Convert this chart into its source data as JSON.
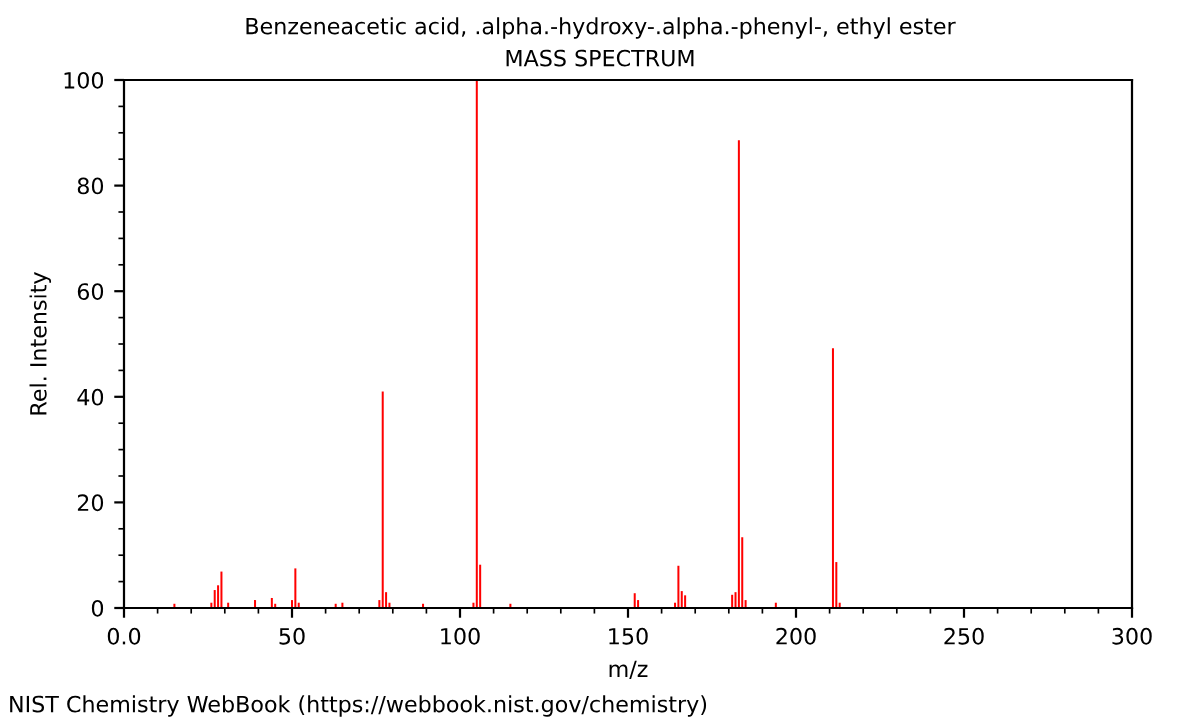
{
  "chart_data": {
    "type": "bar",
    "title": "Benzeneacetic acid, .alpha.-hydroxy-.alpha.-phenyl-, ethyl ester",
    "subtitle": "MASS SPECTRUM",
    "xlabel": "m/z",
    "ylabel": "Rel. Intensity",
    "annotations": [
      "NIST Chemistry WebBook (https://webbook.nist.gov/chemistry)"
    ],
    "x": [
      15,
      26,
      27,
      28,
      29,
      31,
      39,
      44,
      45,
      50,
      51,
      52,
      63,
      65,
      76,
      77,
      78,
      79,
      89,
      104,
      105,
      106,
      115,
      152,
      153,
      164,
      165,
      166,
      167,
      181,
      182,
      183,
      184,
      185,
      194,
      211,
      212,
      213
    ],
    "values": [
      0.8,
      1,
      3.4,
      4.3,
      6.9,
      1,
      1.5,
      1.9,
      0.8,
      1.5,
      7.5,
      1,
      0.8,
      1,
      1.5,
      41,
      3,
      1,
      0.8,
      1,
      100,
      8.2,
      0.8,
      2.8,
      1.5,
      1,
      8,
      3.2,
      2.4,
      2.5,
      3,
      88.6,
      13.4,
      1.5,
      1,
      49.2,
      8.7,
      1
    ],
    "color": "#ff0000",
    "xlim": [
      0,
      300
    ],
    "ylim": [
      0,
      100
    ],
    "xticks": [
      {
        "value": 0,
        "label": "0.0"
      },
      {
        "value": 10,
        "label": null
      },
      {
        "value": 20,
        "label": null
      },
      {
        "value": 30,
        "label": null
      },
      {
        "value": 40,
        "label": null
      },
      50,
      {
        "value": 60,
        "label": null
      },
      {
        "value": 70,
        "label": null
      },
      {
        "value": 80,
        "label": null
      },
      {
        "value": 90,
        "label": null
      },
      100,
      {
        "value": 110,
        "label": null
      },
      {
        "value": 120,
        "label": null
      },
      {
        "value": 130,
        "label": null
      },
      {
        "value": 140,
        "label": null
      },
      150,
      {
        "value": 160,
        "label": null
      },
      {
        "value": 170,
        "label": null
      },
      {
        "value": 180,
        "label": null
      },
      {
        "value": 190,
        "label": null
      },
      200,
      {
        "value": 210,
        "label": null
      },
      {
        "value": 220,
        "label": null
      },
      {
        "value": 230,
        "label": null
      },
      {
        "value": 240,
        "label": null
      },
      250,
      {
        "value": 260,
        "label": null
      },
      {
        "value": 270,
        "label": null
      },
      {
        "value": 280,
        "label": null
      },
      {
        "value": 290,
        "label": null
      },
      300
    ],
    "yticks": [
      0,
      {
        "value": 5,
        "label": null
      },
      {
        "value": 10,
        "label": null
      },
      {
        "value": 15,
        "label": null
      },
      20,
      {
        "value": 25,
        "label": null
      },
      {
        "value": 30,
        "label": null
      },
      {
        "value": 35,
        "label": null
      },
      40,
      {
        "value": 45,
        "label": null
      },
      {
        "value": 50,
        "label": null
      },
      {
        "value": 55,
        "label": null
      },
      60,
      {
        "value": 65,
        "label": null
      },
      {
        "value": 70,
        "label": null
      },
      {
        "value": 75,
        "label": null
      },
      80,
      {
        "value": 85,
        "label": null
      },
      {
        "value": 90,
        "label": null
      },
      {
        "value": 95,
        "label": null
      },
      100
    ],
    "grid": false
  }
}
